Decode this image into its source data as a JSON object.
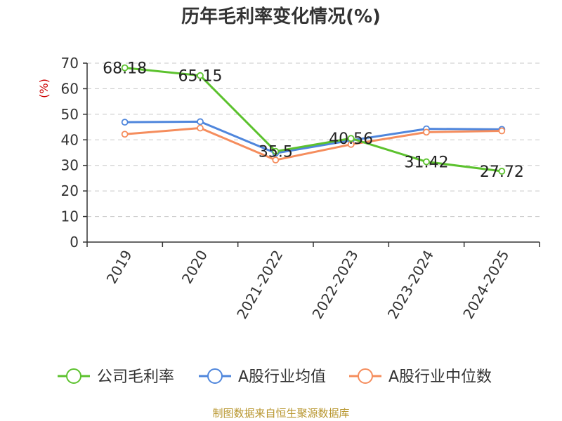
{
  "chart_data": {
    "type": "line",
    "title": "历年毛利率变化情况(%)",
    "ylabel": "(%)",
    "ylim": [
      0,
      70
    ],
    "yticks": [
      0,
      10,
      20,
      30,
      40,
      50,
      60,
      70
    ],
    "categories": [
      "2019",
      "2020",
      "2021-2022",
      "2022-2023",
      "2023-2024",
      "2024-2025"
    ],
    "grid": true,
    "legend_position": "bottom",
    "series": [
      {
        "name": "公司毛利率",
        "color": "#5cc22e",
        "values": [
          68.18,
          65.15,
          35.5,
          40.56,
          31.42,
          27.72
        ],
        "labels": [
          "68.18",
          "65.15",
          "35.5",
          "40.56",
          "31.42",
          "27.72"
        ]
      },
      {
        "name": "A股行业均值",
        "color": "#4f86dc",
        "values": [
          46.9,
          47.1,
          34.8,
          39.8,
          44.3,
          44.1
        ]
      },
      {
        "name": "A股行业中位数",
        "color": "#f58d5d",
        "values": [
          42.2,
          44.6,
          32.1,
          38.2,
          43.0,
          43.5
        ]
      }
    ]
  },
  "footer": {
    "source": "制图数据来自恒生聚源数据库"
  }
}
